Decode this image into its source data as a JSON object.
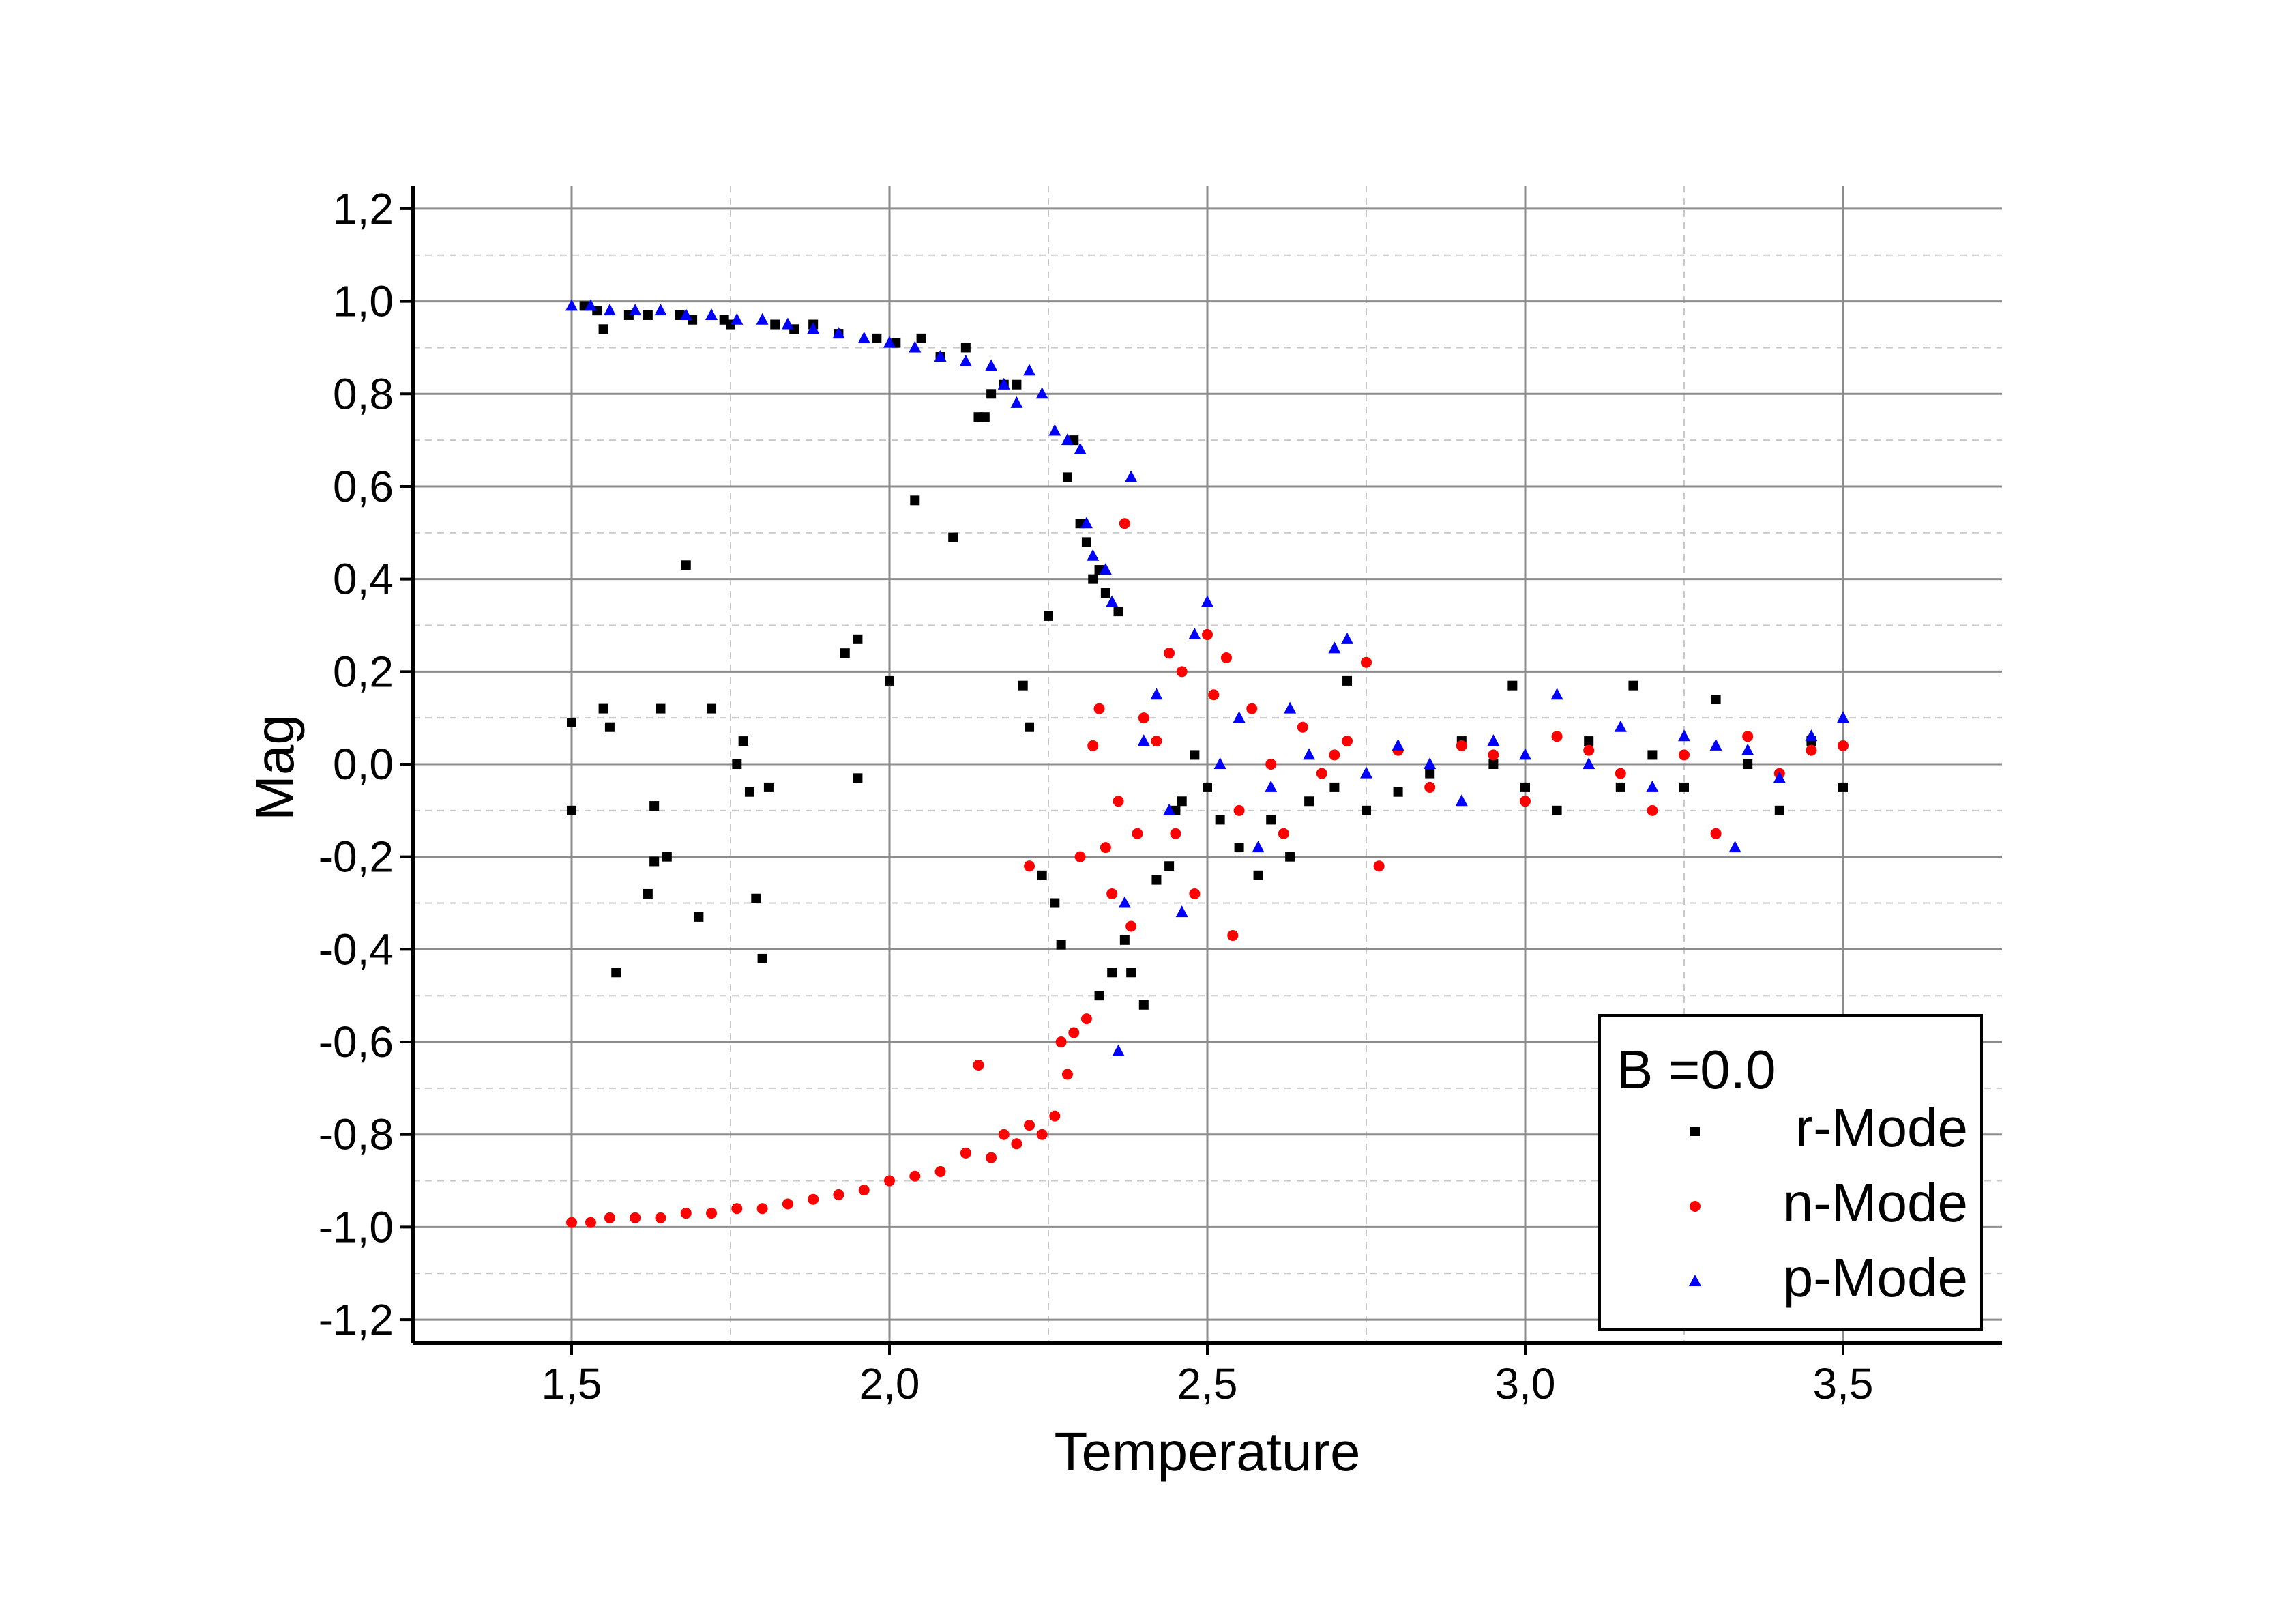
{
  "chart_data": {
    "type": "scatter",
    "title": "",
    "xlabel": "Temperature",
    "ylabel": "Mag",
    "xlim": [
      1.25,
      3.75
    ],
    "ylim": [
      -1.25,
      1.25
    ],
    "x_ticks": [
      1.5,
      2.0,
      2.5,
      3.0,
      3.5
    ],
    "x_tick_labels": [
      "1,5",
      "2,0",
      "2,5",
      "3,0",
      "3,5"
    ],
    "y_ticks": [
      -1.2,
      -1.0,
      -0.8,
      -0.6,
      -0.4,
      -0.2,
      0.0,
      0.2,
      0.4,
      0.6,
      0.8,
      1.0,
      1.2
    ],
    "y_tick_labels": [
      "-1,2",
      "-1,0",
      "-0,8",
      "-0,6",
      "-0,4",
      "-0,2",
      "0,0",
      "0,2",
      "0,4",
      "0,6",
      "0,8",
      "1,0",
      "1,2"
    ],
    "grid": true,
    "legend": {
      "placement": "bottom-right",
      "title": "B =0.0",
      "entries": [
        "r-Mode",
        "n-Mode",
        "p-Mode"
      ]
    },
    "series": [
      {
        "name": "r-Mode",
        "marker": "square",
        "color": "#000000",
        "points": [
          [
            1.5,
            0.09
          ],
          [
            1.5,
            -0.1
          ],
          [
            1.52,
            0.99
          ],
          [
            1.54,
            0.98
          ],
          [
            1.55,
            0.12
          ],
          [
            1.55,
            0.94
          ],
          [
            1.56,
            0.08
          ],
          [
            1.57,
            -0.45
          ],
          [
            1.59,
            0.97
          ],
          [
            1.62,
            -0.28
          ],
          [
            1.62,
            0.97
          ],
          [
            1.63,
            -0.21
          ],
          [
            1.63,
            -0.09
          ],
          [
            1.64,
            0.12
          ],
          [
            1.65,
            -0.2
          ],
          [
            1.67,
            0.97
          ],
          [
            1.68,
            0.43
          ],
          [
            1.69,
            0.96
          ],
          [
            1.7,
            -0.33
          ],
          [
            1.72,
            0.12
          ],
          [
            1.74,
            0.96
          ],
          [
            1.75,
            0.95
          ],
          [
            1.76,
            0.0
          ],
          [
            1.77,
            0.05
          ],
          [
            1.78,
            -0.06
          ],
          [
            1.79,
            -0.29
          ],
          [
            1.8,
            -0.42
          ],
          [
            1.81,
            -0.05
          ],
          [
            1.82,
            0.95
          ],
          [
            1.85,
            0.94
          ],
          [
            1.88,
            0.95
          ],
          [
            1.92,
            0.93
          ],
          [
            1.93,
            0.24
          ],
          [
            1.95,
            0.27
          ],
          [
            1.95,
            -0.03
          ],
          [
            1.98,
            0.92
          ],
          [
            2.0,
            0.18
          ],
          [
            2.01,
            0.91
          ],
          [
            2.04,
            0.57
          ],
          [
            2.05,
            0.92
          ],
          [
            2.08,
            0.88
          ],
          [
            2.1,
            0.49
          ],
          [
            2.12,
            0.9
          ],
          [
            2.14,
            0.75
          ],
          [
            2.15,
            0.75
          ],
          [
            2.16,
            0.8
          ],
          [
            2.18,
            0.82
          ],
          [
            2.2,
            0.82
          ],
          [
            2.21,
            0.17
          ],
          [
            2.22,
            0.08
          ],
          [
            2.24,
            -0.24
          ],
          [
            2.25,
            0.32
          ],
          [
            2.26,
            -0.3
          ],
          [
            2.27,
            -0.39
          ],
          [
            2.28,
            0.62
          ],
          [
            2.29,
            0.7
          ],
          [
            2.3,
            0.52
          ],
          [
            2.31,
            0.48
          ],
          [
            2.32,
            0.4
          ],
          [
            2.33,
            -0.5
          ],
          [
            2.33,
            0.42
          ],
          [
            2.34,
            0.37
          ],
          [
            2.35,
            -0.45
          ],
          [
            2.36,
            0.33
          ],
          [
            2.37,
            -0.38
          ],
          [
            2.38,
            -0.45
          ],
          [
            2.4,
            -0.52
          ],
          [
            2.42,
            -0.25
          ],
          [
            2.44,
            -0.22
          ],
          [
            2.45,
            -0.1
          ],
          [
            2.46,
            -0.08
          ],
          [
            2.48,
            0.02
          ],
          [
            2.5,
            -0.05
          ],
          [
            2.52,
            -0.12
          ],
          [
            2.55,
            -0.18
          ],
          [
            2.58,
            -0.24
          ],
          [
            2.6,
            -0.12
          ],
          [
            2.63,
            -0.2
          ],
          [
            2.66,
            -0.08
          ],
          [
            2.7,
            -0.05
          ],
          [
            2.72,
            0.18
          ],
          [
            2.75,
            -0.1
          ],
          [
            2.8,
            -0.06
          ],
          [
            2.85,
            -0.02
          ],
          [
            2.9,
            0.05
          ],
          [
            2.95,
            0.0
          ],
          [
            2.98,
            0.17
          ],
          [
            3.0,
            -0.05
          ],
          [
            3.05,
            -0.1
          ],
          [
            3.1,
            0.05
          ],
          [
            3.15,
            -0.05
          ],
          [
            3.17,
            0.17
          ],
          [
            3.2,
            0.02
          ],
          [
            3.25,
            -0.05
          ],
          [
            3.3,
            0.14
          ],
          [
            3.35,
            0.0
          ],
          [
            3.4,
            -0.1
          ],
          [
            3.45,
            0.05
          ],
          [
            3.5,
            -0.05
          ]
        ]
      },
      {
        "name": "n-Mode",
        "marker": "circle",
        "color": "#ff0000",
        "points": [
          [
            1.5,
            -0.99
          ],
          [
            1.53,
            -0.99
          ],
          [
            1.56,
            -0.98
          ],
          [
            1.6,
            -0.98
          ],
          [
            1.64,
            -0.98
          ],
          [
            1.68,
            -0.97
          ],
          [
            1.72,
            -0.97
          ],
          [
            1.76,
            -0.96
          ],
          [
            1.8,
            -0.96
          ],
          [
            1.84,
            -0.95
          ],
          [
            1.88,
            -0.94
          ],
          [
            1.92,
            -0.93
          ],
          [
            1.96,
            -0.92
          ],
          [
            2.0,
            -0.9
          ],
          [
            2.04,
            -0.89
          ],
          [
            2.08,
            -0.88
          ],
          [
            2.12,
            -0.84
          ],
          [
            2.14,
            -0.65
          ],
          [
            2.16,
            -0.85
          ],
          [
            2.18,
            -0.8
          ],
          [
            2.2,
            -0.82
          ],
          [
            2.22,
            -0.78
          ],
          [
            2.22,
            -0.22
          ],
          [
            2.24,
            -0.8
          ],
          [
            2.26,
            -0.76
          ],
          [
            2.27,
            -0.6
          ],
          [
            2.28,
            -0.67
          ],
          [
            2.29,
            -0.58
          ],
          [
            2.3,
            -0.2
          ],
          [
            2.31,
            -0.55
          ],
          [
            2.32,
            0.04
          ],
          [
            2.33,
            0.12
          ],
          [
            2.34,
            -0.18
          ],
          [
            2.35,
            -0.28
          ],
          [
            2.36,
            -0.08
          ],
          [
            2.37,
            0.52
          ],
          [
            2.38,
            -0.35
          ],
          [
            2.39,
            -0.15
          ],
          [
            2.4,
            0.1
          ],
          [
            2.42,
            0.05
          ],
          [
            2.44,
            0.24
          ],
          [
            2.45,
            -0.15
          ],
          [
            2.46,
            0.2
          ],
          [
            2.48,
            -0.28
          ],
          [
            2.5,
            0.28
          ],
          [
            2.51,
            0.15
          ],
          [
            2.53,
            0.23
          ],
          [
            2.54,
            -0.37
          ],
          [
            2.55,
            -0.1
          ],
          [
            2.57,
            0.12
          ],
          [
            2.6,
            0.0
          ],
          [
            2.62,
            -0.15
          ],
          [
            2.65,
            0.08
          ],
          [
            2.68,
            -0.02
          ],
          [
            2.7,
            0.02
          ],
          [
            2.72,
            0.05
          ],
          [
            2.75,
            0.22
          ],
          [
            2.77,
            -0.22
          ],
          [
            2.8,
            0.03
          ],
          [
            2.85,
            -0.05
          ],
          [
            2.9,
            0.04
          ],
          [
            2.95,
            0.02
          ],
          [
            3.0,
            -0.08
          ],
          [
            3.05,
            0.06
          ],
          [
            3.1,
            0.03
          ],
          [
            3.15,
            -0.02
          ],
          [
            3.2,
            -0.1
          ],
          [
            3.25,
            0.02
          ],
          [
            3.3,
            -0.15
          ],
          [
            3.35,
            0.06
          ],
          [
            3.4,
            -0.02
          ],
          [
            3.45,
            0.03
          ],
          [
            3.5,
            0.04
          ]
        ]
      },
      {
        "name": "p-Mode",
        "marker": "triangle",
        "color": "#0000ff",
        "points": [
          [
            1.5,
            0.99
          ],
          [
            1.53,
            0.99
          ],
          [
            1.56,
            0.98
          ],
          [
            1.6,
            0.98
          ],
          [
            1.64,
            0.98
          ],
          [
            1.68,
            0.97
          ],
          [
            1.72,
            0.97
          ],
          [
            1.76,
            0.96
          ],
          [
            1.8,
            0.96
          ],
          [
            1.84,
            0.95
          ],
          [
            1.88,
            0.94
          ],
          [
            1.92,
            0.93
          ],
          [
            1.96,
            0.92
          ],
          [
            2.0,
            0.91
          ],
          [
            2.04,
            0.9
          ],
          [
            2.08,
            0.88
          ],
          [
            2.12,
            0.87
          ],
          [
            2.16,
            0.86
          ],
          [
            2.18,
            0.82
          ],
          [
            2.2,
            0.78
          ],
          [
            2.22,
            0.85
          ],
          [
            2.24,
            0.8
          ],
          [
            2.26,
            0.72
          ],
          [
            2.28,
            0.7
          ],
          [
            2.3,
            0.68
          ],
          [
            2.31,
            0.52
          ],
          [
            2.32,
            0.45
          ],
          [
            2.34,
            0.42
          ],
          [
            2.35,
            0.35
          ],
          [
            2.36,
            -0.62
          ],
          [
            2.37,
            -0.3
          ],
          [
            2.38,
            0.62
          ],
          [
            2.4,
            0.05
          ],
          [
            2.42,
            0.15
          ],
          [
            2.44,
            -0.1
          ],
          [
            2.46,
            -0.32
          ],
          [
            2.48,
            0.28
          ],
          [
            2.5,
            0.35
          ],
          [
            2.52,
            0.0
          ],
          [
            2.55,
            0.1
          ],
          [
            2.58,
            -0.18
          ],
          [
            2.6,
            -0.05
          ],
          [
            2.63,
            0.12
          ],
          [
            2.66,
            0.02
          ],
          [
            2.7,
            0.25
          ],
          [
            2.72,
            0.27
          ],
          [
            2.75,
            -0.02
          ],
          [
            2.8,
            0.04
          ],
          [
            2.85,
            0.0
          ],
          [
            2.9,
            -0.08
          ],
          [
            2.95,
            0.05
          ],
          [
            3.0,
            0.02
          ],
          [
            3.05,
            0.15
          ],
          [
            3.1,
            0.0
          ],
          [
            3.15,
            0.08
          ],
          [
            3.2,
            -0.05
          ],
          [
            3.25,
            0.06
          ],
          [
            3.3,
            0.04
          ],
          [
            3.33,
            -0.18
          ],
          [
            3.35,
            0.03
          ],
          [
            3.4,
            -0.03
          ],
          [
            3.45,
            0.06
          ],
          [
            3.5,
            0.1
          ]
        ]
      }
    ]
  }
}
